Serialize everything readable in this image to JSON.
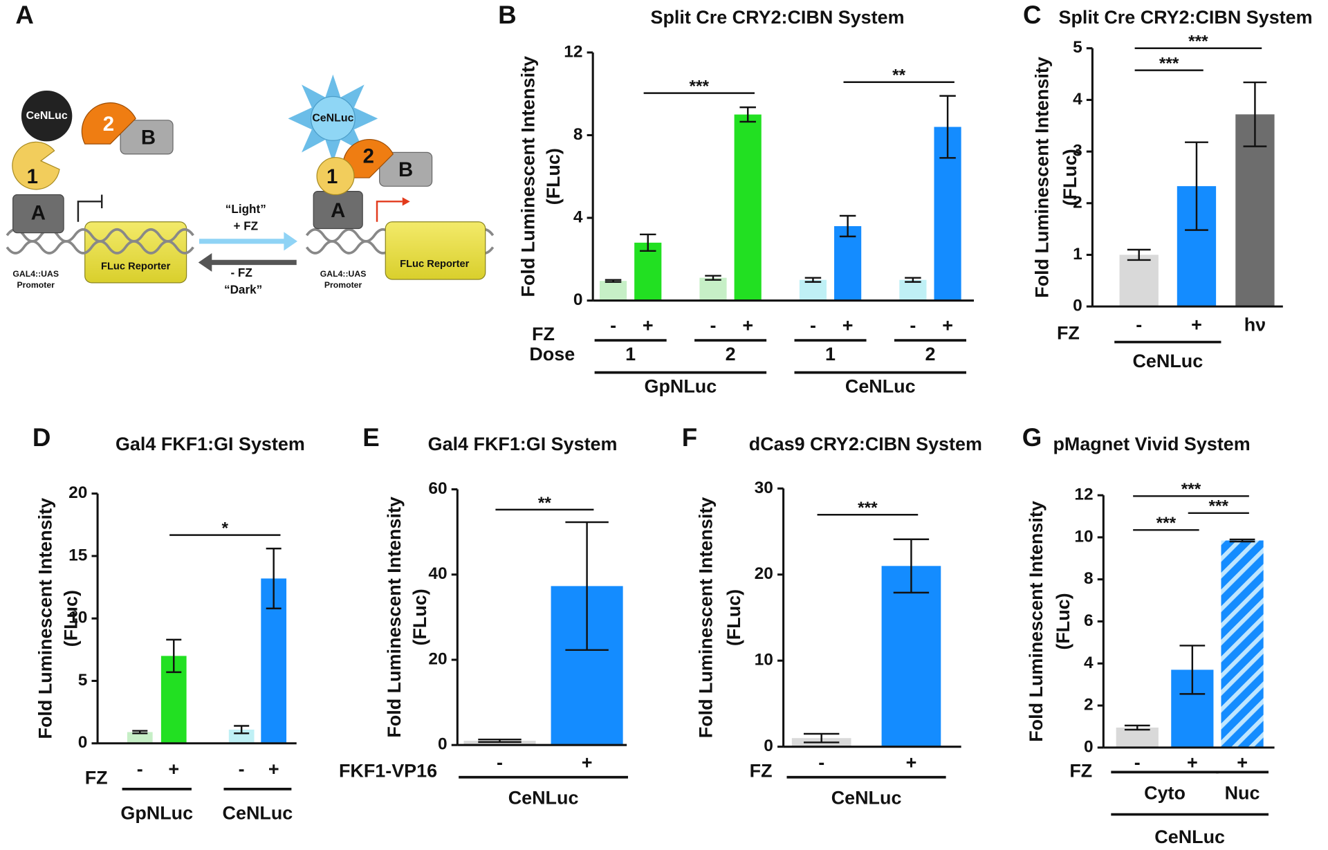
{
  "diagram": {
    "panel": "A",
    "left": {
      "nluc": "CeNLuc",
      "part2": "2",
      "partB": "B",
      "part1": "1",
      "partA": "A",
      "reporter": "FLuc Reporter",
      "promoter": [
        "GAL4::UAS",
        "Promoter"
      ]
    },
    "forward": [
      "“Light”",
      "+ FZ"
    ],
    "reverse": [
      "- FZ",
      "“Dark”"
    ],
    "right": {
      "nluc": "CeNLuc",
      "part2": "2",
      "partB": "B",
      "part1": "1",
      "partA": "A",
      "reporter": "FLuc Reporter",
      "promoter": [
        "GAL4::UAS",
        "Promoter"
      ]
    }
  },
  "chart_data": [
    {
      "type": "bar",
      "panel": "B",
      "title": "Split Cre CRY2:CIBN System",
      "y_label": [
        "Fold Luminescent Intensity",
        "(FLuc)"
      ],
      "categories": [
        "-",
        "+",
        "-",
        "+",
        "-",
        "+",
        "-",
        "+"
      ],
      "row_label": "FZ",
      "values": [
        0.95,
        2.8,
        1.1,
        9.0,
        1.0,
        3.6,
        1.0,
        8.4
      ],
      "errors": [
        0.05,
        0.4,
        0.1,
        0.35,
        0.1,
        0.5,
        0.1,
        1.5
      ],
      "colors": [
        "#c6efc6",
        "#22e022",
        "#c6efc6",
        "#22e022",
        "#bff0f5",
        "#148cff",
        "#bff0f5",
        "#148cff"
      ],
      "ylim": [
        0,
        12
      ],
      "yticks": [
        0,
        4,
        8,
        12
      ],
      "levels": [
        {
          "label": "Dose",
          "groups": [
            {
              "label": "1",
              "bars": [
                0,
                1
              ]
            },
            {
              "label": "2",
              "bars": [
                2,
                3
              ]
            },
            {
              "label": "1",
              "bars": [
                4,
                5
              ]
            },
            {
              "label": "2",
              "bars": [
                6,
                7
              ]
            }
          ]
        },
        {
          "groups": [
            {
              "label": "GpNLuc",
              "bars": [
                0,
                1,
                2,
                3
              ]
            },
            {
              "label": "CeNLuc",
              "bars": [
                4,
                5,
                6,
                7
              ]
            }
          ]
        }
      ],
      "significance": [
        {
          "label": "***",
          "from": 1,
          "to": 3
        },
        {
          "label": "**",
          "from": 5,
          "to": 7
        }
      ]
    },
    {
      "type": "bar",
      "panel": "C",
      "title": "Split Cre CRY2:CIBN System",
      "y_label": [
        "Fold Luminescent Intensity",
        "(FLuc)"
      ],
      "categories": [
        "-",
        "+",
        "hν"
      ],
      "row_label": "FZ",
      "values": [
        1.0,
        2.33,
        3.72
      ],
      "errors": [
        0.1,
        0.85,
        0.62
      ],
      "colors": [
        "#d9d9d9",
        "#148cff",
        "#6d6d6d"
      ],
      "ylim": [
        0,
        5
      ],
      "yticks": [
        0,
        1,
        2,
        3,
        4,
        5
      ],
      "levels": [
        {
          "groups": [
            {
              "label": "CeNLuc",
              "bars": [
                0,
                1
              ]
            }
          ]
        }
      ],
      "significance": [
        {
          "label": "***",
          "from": 0,
          "to": 1
        },
        {
          "label": "***",
          "from": 0,
          "to": 2
        }
      ]
    },
    {
      "type": "bar",
      "panel": "D",
      "title": "Gal4 FKF1:GI System",
      "y_label": [
        "Fold Luminescent Intensity",
        "(FLuc)"
      ],
      "categories": [
        "-",
        "+",
        "-",
        "+"
      ],
      "row_label": "FZ",
      "values": [
        0.9,
        7.0,
        1.1,
        13.2
      ],
      "errors": [
        0.1,
        1.3,
        0.3,
        2.4
      ],
      "colors": [
        "#c6efc6",
        "#22e022",
        "#bff0f5",
        "#148cff"
      ],
      "ylim": [
        0,
        20
      ],
      "yticks": [
        0,
        5,
        10,
        15,
        20
      ],
      "levels": [
        {
          "groups": [
            {
              "label": "GpNLuc",
              "bars": [
                0,
                1
              ]
            },
            {
              "label": "CeNLuc",
              "bars": [
                2,
                3
              ]
            }
          ]
        }
      ],
      "significance": [
        {
          "label": "*",
          "from": 1,
          "to": 3
        }
      ]
    },
    {
      "type": "bar",
      "panel": "E",
      "title": "Gal4 FKF1:GI System",
      "y_label": [
        "Fold Luminescent Intensity",
        "(FLuc)"
      ],
      "categories": [
        "-",
        "+"
      ],
      "row_label": "FKF1-VP16",
      "values": [
        1.0,
        37.3
      ],
      "errors": [
        0.3,
        15.0
      ],
      "colors": [
        "#d9d9d9",
        "#148cff"
      ],
      "ylim": [
        0,
        60
      ],
      "yticks": [
        0,
        20,
        40,
        60
      ],
      "levels": [
        {
          "groups": [
            {
              "label": "CeNLuc",
              "bars": [
                0,
                1
              ]
            }
          ]
        }
      ],
      "significance": [
        {
          "label": "**",
          "from": 0,
          "to": 1
        }
      ]
    },
    {
      "type": "bar",
      "panel": "F",
      "title": "dCas9 CRY2:CIBN System",
      "y_label": [
        "Fold Luminescent Intensity",
        "(FLuc)"
      ],
      "categories": [
        "-",
        "+"
      ],
      "row_label": "FZ",
      "values": [
        1.0,
        21.0
      ],
      "errors": [
        0.5,
        3.1
      ],
      "colors": [
        "#d9d9d9",
        "#148cff"
      ],
      "ylim": [
        0,
        30
      ],
      "yticks": [
        0,
        10,
        20,
        30
      ],
      "levels": [
        {
          "groups": [
            {
              "label": "CeNLuc",
              "bars": [
                0,
                1
              ]
            }
          ]
        }
      ],
      "significance": [
        {
          "label": "***",
          "from": 0,
          "to": 1
        }
      ]
    },
    {
      "type": "bar",
      "panel": "G",
      "title": "pMagnet Vivid System",
      "y_label": [
        "Fold Luminescent Intensity",
        "(FLuc)"
      ],
      "categories": [
        "-",
        "+",
        "+"
      ],
      "row_label": "FZ",
      "values": [
        0.95,
        3.7,
        9.85
      ],
      "errors": [
        0.1,
        1.15,
        0.05
      ],
      "colors": [
        "#d9d9d9",
        "#148cff",
        "#148cff"
      ],
      "hatched": [
        false,
        false,
        true
      ],
      "ylim": [
        0,
        12
      ],
      "yticks": [
        0,
        2,
        4,
        6,
        8,
        10,
        12
      ],
      "levels": [
        {
          "groups": [
            {
              "label": "Cyto",
              "bars": [
                0,
                1
              ]
            },
            {
              "label": "Nuc",
              "bars": [
                2
              ]
            }
          ]
        },
        {
          "groups": [
            {
              "label": "CeNLuc",
              "bars": [
                0,
                1,
                2
              ]
            }
          ]
        }
      ],
      "significance": [
        {
          "label": "***",
          "from": 0,
          "to": 1
        },
        {
          "label": "***",
          "from": 1,
          "to": 2
        },
        {
          "label": "***",
          "from": 0,
          "to": 2
        }
      ]
    }
  ]
}
